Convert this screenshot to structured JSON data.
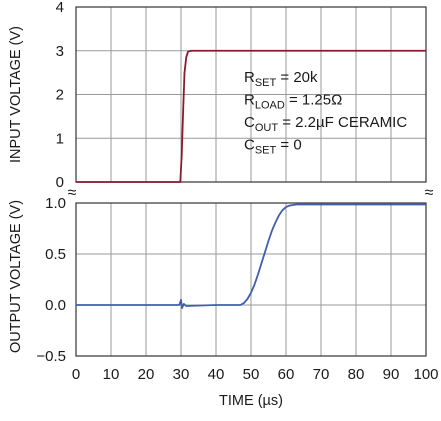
{
  "chart_data": [
    {
      "type": "line",
      "panel": "top",
      "ylabel": "INPUT VOLTAGE (V)",
      "xlim": [
        0,
        100
      ],
      "ylim": [
        0,
        4
      ],
      "yticks": [
        "0",
        "1",
        "2",
        "3",
        "4"
      ],
      "grid": true,
      "series": [
        {
          "color": "#8b1a2e",
          "x": [
            0,
            29.8,
            30.2,
            30.6,
            31.0,
            31.5,
            32.0,
            33.0,
            100
          ],
          "y": [
            0.0,
            0.0,
            0.6,
            1.6,
            2.5,
            2.85,
            2.98,
            3.0,
            3.0
          ]
        }
      ],
      "annotations": [
        {
          "main": "R",
          "sub": "SET",
          "rest": " = 20k"
        },
        {
          "main": "R",
          "sub": "LOAD",
          "rest": " = 1.25Ω"
        },
        {
          "main": "C",
          "sub": "OUT",
          "rest": " = 2.2µF CERAMIC"
        },
        {
          "main": "C",
          "sub": "SET",
          "rest": " = 0"
        }
      ]
    },
    {
      "type": "line",
      "panel": "bottom",
      "ylabel": "OUTPUT VOLTAGE (V)",
      "xlabel": "TIME (µs)",
      "xlim": [
        0,
        100
      ],
      "ylim": [
        -0.5,
        1.0
      ],
      "xticks": [
        "0",
        "10",
        "20",
        "30",
        "40",
        "50",
        "60",
        "70",
        "80",
        "90",
        "100"
      ],
      "yticks": [
        "−0.5",
        "0.0",
        "0.5",
        "1.0"
      ],
      "grid": true,
      "series": [
        {
          "color": "#3f5fae",
          "x": [
            0,
            20,
            29.5,
            30.0,
            30.3,
            30.8,
            31.5,
            40,
            47,
            48,
            49,
            50,
            51,
            52,
            53,
            54,
            55,
            56,
            57,
            58,
            59,
            60,
            61,
            62,
            63,
            65,
            70,
            80,
            90,
            100
          ],
          "y": [
            0.0,
            0.0,
            0.0,
            0.05,
            -0.03,
            0.01,
            -0.01,
            0.0,
            0.0,
            0.02,
            0.06,
            0.12,
            0.2,
            0.3,
            0.41,
            0.52,
            0.63,
            0.73,
            0.81,
            0.88,
            0.93,
            0.96,
            0.975,
            0.98,
            0.985,
            0.985,
            0.985,
            0.985,
            0.985,
            0.985
          ]
        }
      ]
    }
  ],
  "colors": {
    "input_trace": "#8b1a2e",
    "output_trace": "#3f5fae",
    "grid": "#9a9a9a",
    "frame": "#333333"
  },
  "break_marks": [
    "≈",
    "≈"
  ]
}
